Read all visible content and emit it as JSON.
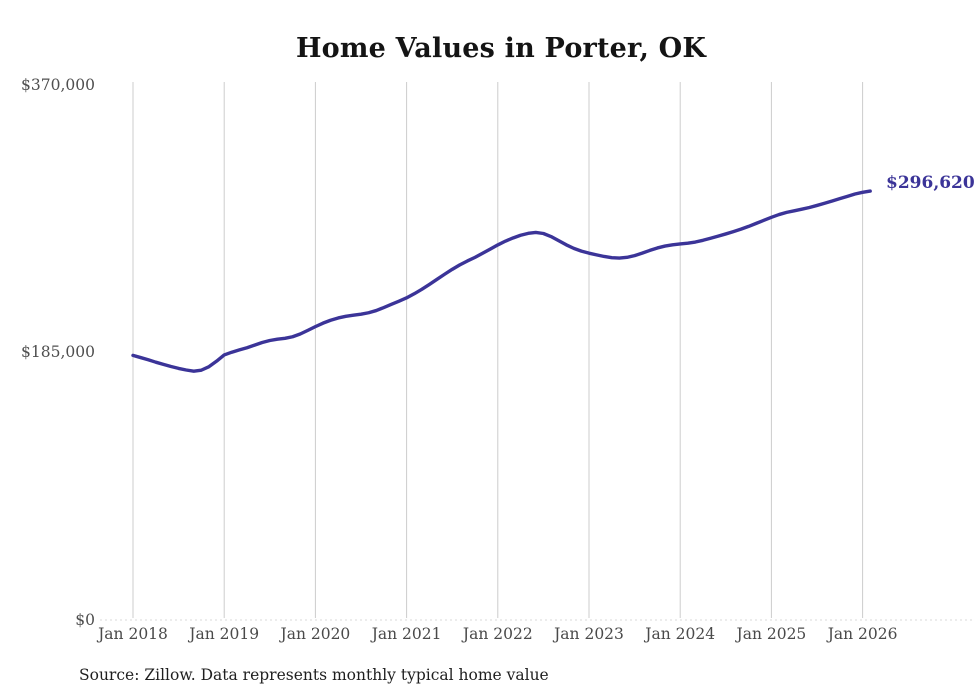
{
  "title": "Home Values in Porter, OK",
  "source_note": "Source: Zillow. Data represents monthly typical home value",
  "colors": {
    "line": "#3b3498",
    "end_label": "#3b3498",
    "gridline": "#cccccc",
    "baseline": "#d9d9d9",
    "tick_text": "#4a4a4a",
    "title_text": "#141414",
    "source_text": "#1f1f1f",
    "background": "#ffffff"
  },
  "chart_data": {
    "type": "line",
    "title": "Home Values in Porter, OK",
    "xlabel": "",
    "ylabel": "",
    "unit": "USD",
    "frequency": "monthly",
    "x_start": "2018-01",
    "x_end": "2026-02",
    "ylim": [
      0,
      370000
    ],
    "grid": "vertical-only",
    "legend": "none",
    "last_value_label": "$296,620",
    "last_value": 296620,
    "x_tick_labels": [
      "Jan 2018",
      "Jan 2019",
      "Jan 2020",
      "Jan 2021",
      "Jan 2022",
      "Jan 2023",
      "Jan 2024",
      "Jan 2025",
      "Jan 2026"
    ],
    "y_ticks": [
      {
        "label": "$370,000",
        "value": 370000
      },
      {
        "label": "$185,000",
        "value": 185000
      },
      {
        "label": "$0",
        "value": 0
      }
    ],
    "series": [
      {
        "name": "Typical home value",
        "values": [
          183000,
          181500,
          180000,
          178300,
          176800,
          175300,
          174000,
          172900,
          172100,
          172800,
          175200,
          179000,
          183300,
          185200,
          186800,
          188300,
          190100,
          191900,
          193300,
          194200,
          194800,
          195900,
          197800,
          200300,
          202900,
          205300,
          207300,
          208900,
          210000,
          210800,
          211500,
          212500,
          214000,
          216100,
          218300,
          220500,
          222800,
          225600,
          228700,
          232100,
          235600,
          239100,
          242500,
          245600,
          248300,
          250800,
          253600,
          256500,
          259400,
          262000,
          264200,
          266100,
          267400,
          268000,
          267300,
          265200,
          262400,
          259500,
          257000,
          255100,
          253700,
          252500,
          251400,
          250600,
          250300,
          250800,
          252000,
          253700,
          255600,
          257300,
          258600,
          259500,
          260100,
          260600,
          261400,
          262600,
          264000,
          265500,
          267000,
          268600,
          270300,
          272200,
          274300,
          276400,
          278500,
          280400,
          281900,
          283000,
          284100,
          285300,
          286700,
          288200,
          289800,
          291400,
          293000,
          294600,
          295800,
          296620
        ]
      }
    ]
  }
}
